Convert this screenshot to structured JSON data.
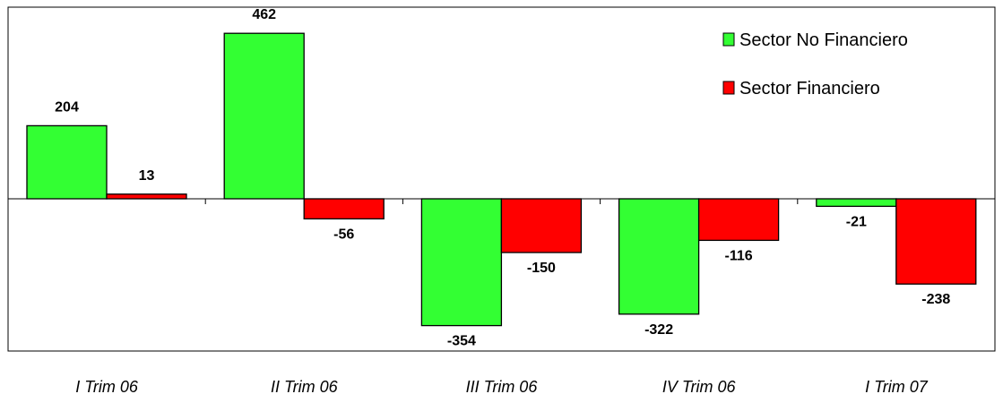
{
  "chart_data": {
    "type": "bar",
    "title": "",
    "xlabel": "",
    "ylabel": "",
    "categories": [
      "I Trim 06",
      "II Trim 06",
      "III Trim 06",
      "IV Trim 06",
      "I Trim 07"
    ],
    "series": [
      {
        "name": "Sector No Financiero",
        "color": "#33ff33",
        "values": [
          204,
          462,
          -354,
          -322,
          -21
        ],
        "labels": [
          "204",
          "462",
          "-354",
          "-322",
          "-21"
        ]
      },
      {
        "name": "Sector Financiero",
        "color": "#ff0000",
        "values": [
          13,
          -56,
          -150,
          -116,
          -238
        ],
        "labels": [
          "13",
          "-56",
          "-150",
          "-116",
          "-238"
        ]
      }
    ],
    "ylim": [
      -410,
      500
    ],
    "grid": false,
    "legend_position": "top-right"
  }
}
